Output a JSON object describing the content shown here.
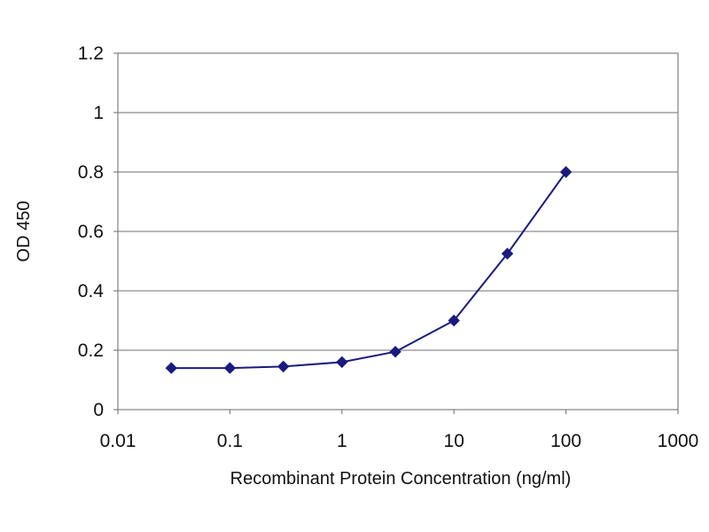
{
  "chart_data": {
    "type": "line",
    "title": "",
    "xlabel": "Recombinant Protein Concentration (ng/ml)",
    "ylabel": "OD 450",
    "x_scale": "log",
    "xlim": [
      0.01,
      1000
    ],
    "ylim": [
      0,
      1.2
    ],
    "x_ticks": [
      "0.01",
      "0.1",
      "1",
      "10",
      "100",
      "1000"
    ],
    "y_ticks": [
      "0",
      "0.2",
      "0.4",
      "0.6",
      "0.8",
      "1",
      "1.2"
    ],
    "grid": "horizontal",
    "legend": "none",
    "series": [
      {
        "color": "#1a1a80",
        "marker": "diamond",
        "x": [
          0.03,
          0.1,
          0.3,
          1,
          3,
          10,
          30,
          100
        ],
        "y": [
          0.14,
          0.14,
          0.145,
          0.16,
          0.195,
          0.3,
          0.525,
          0.8
        ]
      }
    ]
  }
}
